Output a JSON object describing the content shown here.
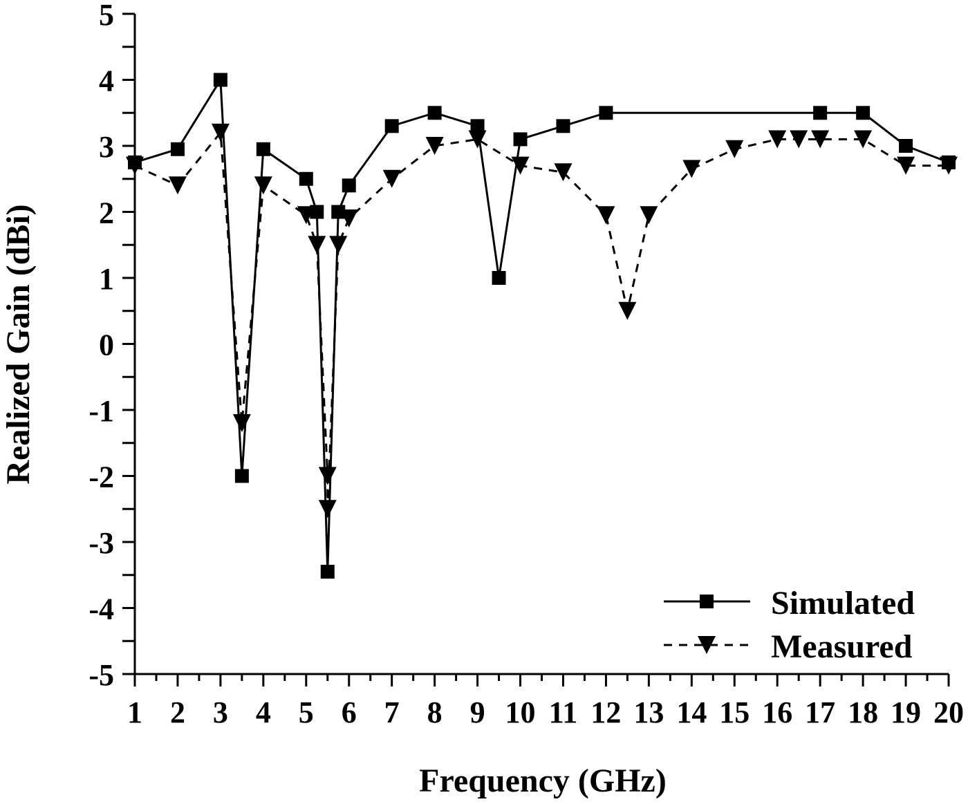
{
  "chart_data": {
    "type": "line",
    "title": "",
    "xlabel": "Frequency (GHz)",
    "ylabel": "Realized Gain (dBi)",
    "xlim": [
      1,
      20
    ],
    "ylim": [
      -5,
      5
    ],
    "x_ticks": [
      1,
      2,
      3,
      4,
      5,
      6,
      7,
      8,
      9,
      10,
      11,
      12,
      13,
      14,
      15,
      16,
      17,
      18,
      19,
      20
    ],
    "y_ticks": [
      5,
      4,
      3,
      2,
      1,
      0,
      -1,
      -2,
      -3,
      -4,
      -5
    ],
    "grid": false,
    "legend_position": "lower right",
    "series": [
      {
        "name": "Simulated",
        "line_style": "solid",
        "marker": "square",
        "color": "#000000",
        "x": [
          1,
          2,
          3,
          3.5,
          4,
          5,
          5.25,
          5.5,
          5.75,
          6,
          7,
          8,
          9,
          9.5,
          10,
          11,
          12,
          17,
          18,
          19,
          20
        ],
        "values": [
          2.75,
          2.95,
          4.0,
          -2.0,
          2.95,
          2.5,
          2.0,
          -3.45,
          2.0,
          2.4,
          3.3,
          3.5,
          3.3,
          1.0,
          3.1,
          3.3,
          3.5,
          3.5,
          3.5,
          3.0,
          2.75
        ]
      },
      {
        "name": "Measured",
        "line_style": "dashed",
        "marker": "triangle-down",
        "color": "#000000",
        "x": [
          1,
          2,
          3,
          3.5,
          4,
          5,
          5.25,
          5.5,
          5.5,
          5.75,
          6,
          7,
          8,
          9,
          10,
          11,
          12,
          12.5,
          13,
          14,
          15,
          16,
          16.5,
          17,
          18,
          19,
          20
        ],
        "values": [
          2.7,
          2.4,
          3.2,
          -1.2,
          2.4,
          1.95,
          1.5,
          -2.0,
          -2.5,
          1.5,
          1.9,
          2.5,
          3.0,
          3.1,
          2.7,
          2.6,
          1.95,
          0.5,
          1.95,
          2.65,
          2.95,
          3.1,
          3.1,
          3.1,
          3.1,
          2.7,
          2.7
        ]
      }
    ]
  },
  "legend": {
    "items": [
      {
        "label": "Simulated"
      },
      {
        "label": "Measured"
      }
    ]
  }
}
